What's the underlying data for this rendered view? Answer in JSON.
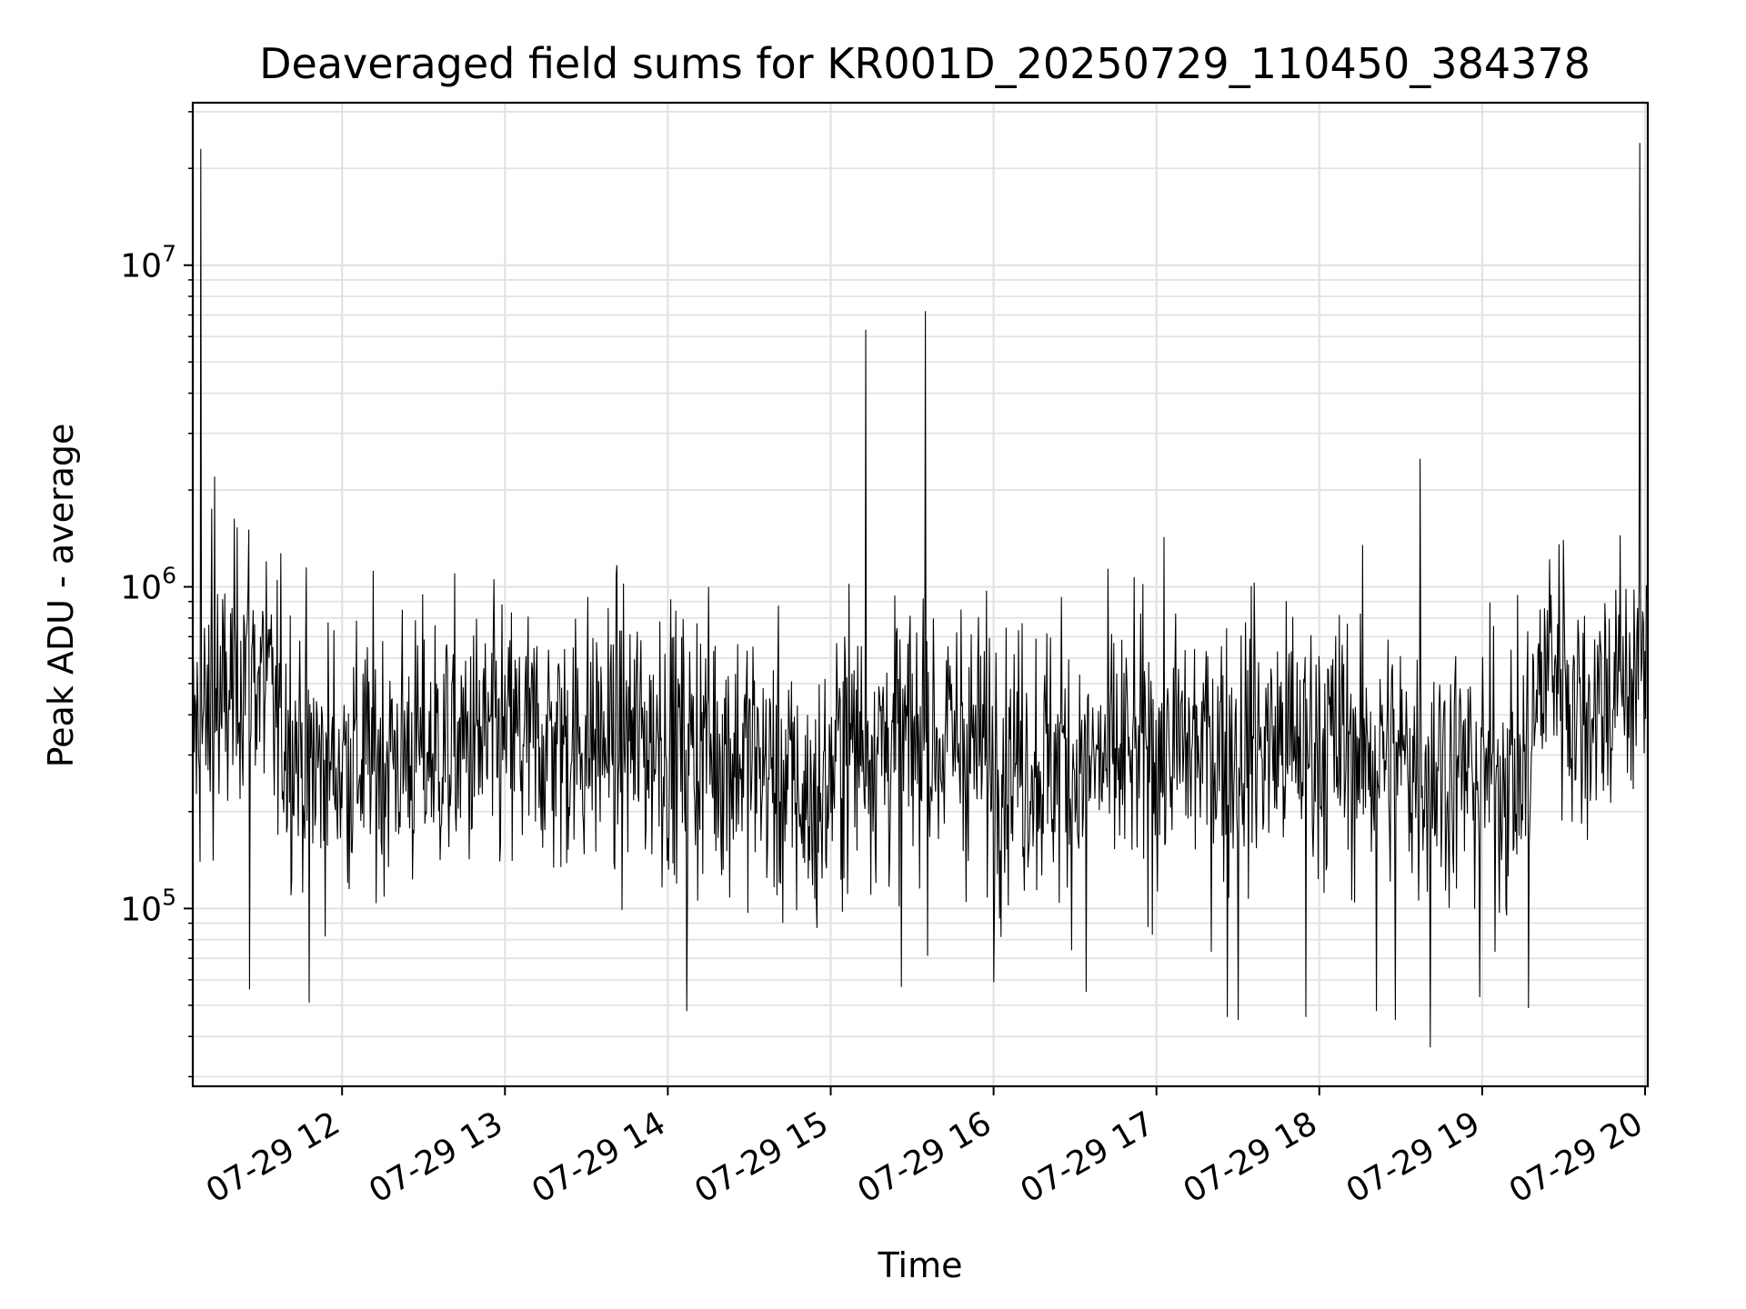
{
  "chart_data": {
    "type": "line",
    "title": "Deaveraged field sums for KR001D_20250729_110450_384378",
    "xlabel": "Time",
    "ylabel": "Peak ADU - average",
    "yscale": "log",
    "grid": true,
    "line_color": "#000000",
    "x_range": [
      "2025-07-29 11:05",
      "2025-07-29 20:01"
    ],
    "ylim": [
      28000,
      32000000
    ],
    "x_ticks": [
      {
        "time": "2025-07-29 12:00",
        "label": "07-29 12"
      },
      {
        "time": "2025-07-29 13:00",
        "label": "07-29 13"
      },
      {
        "time": "2025-07-29 14:00",
        "label": "07-29 14"
      },
      {
        "time": "2025-07-29 15:00",
        "label": "07-29 15"
      },
      {
        "time": "2025-07-29 16:00",
        "label": "07-29 16"
      },
      {
        "time": "2025-07-29 17:00",
        "label": "07-29 17"
      },
      {
        "time": "2025-07-29 18:00",
        "label": "07-29 18"
      },
      {
        "time": "2025-07-29 19:00",
        "label": "07-29 19"
      },
      {
        "time": "2025-07-29 20:00",
        "label": "07-29 20"
      }
    ],
    "y_ticks": [
      {
        "value": 100000,
        "base": "10",
        "exp": "5"
      },
      {
        "value": 1000000,
        "base": "10",
        "exp": "6"
      },
      {
        "value": 10000000,
        "base": "10",
        "exp": "7"
      }
    ],
    "baseline": [
      {
        "time": "2025-07-29 11:05",
        "value": 350000
      },
      {
        "time": "2025-07-29 11:15",
        "value": 380000
      },
      {
        "time": "2025-07-29 11:25",
        "value": 650000
      },
      {
        "time": "2025-07-29 11:35",
        "value": 400000
      },
      {
        "time": "2025-07-29 11:50",
        "value": 280000
      },
      {
        "time": "2025-07-29 12:30",
        "value": 310000
      },
      {
        "time": "2025-07-29 13:00",
        "value": 330000
      },
      {
        "time": "2025-07-29 13:45",
        "value": 340000
      },
      {
        "time": "2025-07-29 14:30",
        "value": 300000
      },
      {
        "time": "2025-07-29 14:55",
        "value": 200000
      },
      {
        "time": "2025-07-29 15:05",
        "value": 330000
      },
      {
        "time": "2025-07-29 15:45",
        "value": 330000
      },
      {
        "time": "2025-07-29 16:30",
        "value": 270000
      },
      {
        "time": "2025-07-29 17:00",
        "value": 310000
      },
      {
        "time": "2025-07-29 18:00",
        "value": 330000
      },
      {
        "time": "2025-07-29 19:00",
        "value": 260000
      },
      {
        "time": "2025-07-29 19:15",
        "value": 260000
      },
      {
        "time": "2025-07-29 19:25",
        "value": 650000
      },
      {
        "time": "2025-07-29 19:35",
        "value": 400000
      },
      {
        "time": "2025-07-29 20:01",
        "value": 580000
      }
    ],
    "spikes": [
      {
        "time": "2025-07-29 11:08",
        "value": 23000000
      },
      {
        "time": "2025-07-29 11:13",
        "value": 2200000
      },
      {
        "time": "2025-07-29 11:12",
        "value": 1750000
      },
      {
        "time": "2025-07-29 11:14",
        "value": 950000
      },
      {
        "time": "2025-07-29 11:32",
        "value": 1200000
      },
      {
        "time": "2025-07-29 13:57",
        "value": 780000
      },
      {
        "time": "2025-07-29 14:15",
        "value": 1000000
      },
      {
        "time": "2025-07-29 15:05",
        "value": 700000
      },
      {
        "time": "2025-07-29 15:13",
        "value": 6300000
      },
      {
        "time": "2025-07-29 15:34",
        "value": 920000
      },
      {
        "time": "2025-07-29 15:35",
        "value": 7200000
      },
      {
        "time": "2025-07-29 15:48",
        "value": 850000
      },
      {
        "time": "2025-07-29 16:25",
        "value": 930000
      },
      {
        "time": "2025-07-29 17:36",
        "value": 1030000
      },
      {
        "time": "2025-07-29 18:37",
        "value": 2500000
      },
      {
        "time": "2025-07-29 19:30",
        "value": 1400000
      },
      {
        "time": "2025-07-29 19:58",
        "value": 24000000
      }
    ],
    "dips": [
      {
        "time": "2025-07-29 11:26",
        "value": 56000
      },
      {
        "time": "2025-07-29 11:48",
        "value": 51000
      },
      {
        "time": "2025-07-29 14:07",
        "value": 48000
      },
      {
        "time": "2025-07-29 15:26",
        "value": 57000
      },
      {
        "time": "2025-07-29 16:00",
        "value": 59000
      },
      {
        "time": "2025-07-29 16:34",
        "value": 55000
      },
      {
        "time": "2025-07-29 17:26",
        "value": 46000
      },
      {
        "time": "2025-07-29 17:30",
        "value": 45000
      },
      {
        "time": "2025-07-29 17:55",
        "value": 46000
      },
      {
        "time": "2025-07-29 18:21",
        "value": 48000
      },
      {
        "time": "2025-07-29 18:28",
        "value": 45000
      },
      {
        "time": "2025-07-29 18:41",
        "value": 37000
      },
      {
        "time": "2025-07-29 18:59",
        "value": 53000
      },
      {
        "time": "2025-07-29 19:17",
        "value": 49000
      }
    ],
    "noise_band_decades": 0.5
  }
}
